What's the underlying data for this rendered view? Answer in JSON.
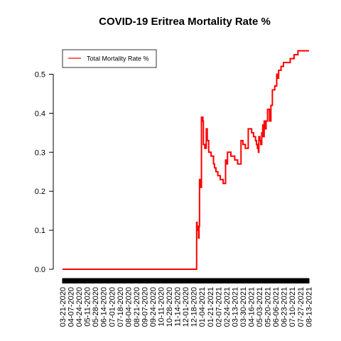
{
  "chart_data": {
    "type": "line",
    "title": "COVID-19 Eritrea Mortality Rate %",
    "xlabel": "",
    "ylabel": "",
    "ylim": [
      0,
      0.56
    ],
    "yticks": [
      "0.0",
      "0.1",
      "0.2",
      "0.3",
      "0.4",
      "0.5"
    ],
    "ytick_values": [
      0,
      0.1,
      0.2,
      0.3,
      0.4,
      0.5
    ],
    "x_start_date": "2020-03-21",
    "x_end_date": "2021-08-14",
    "xticks": [
      "03-21-2020",
      "04-07-2020",
      "04-24-2020",
      "05-11-2020",
      "05-28-2020",
      "06-14-2020",
      "07-01-2020",
      "07-18-2020",
      "08-04-2020",
      "08-21-2020",
      "09-07-2020",
      "09-24-2020",
      "10-11-2020",
      "10-28-2020",
      "11-14-2020",
      "12-01-2020",
      "12-18-2020",
      "01-04-2021",
      "01-21-2021",
      "02-07-2021",
      "02-24-2021",
      "03-13-2021",
      "03-30-2021",
      "04-16-2021",
      "05-03-2021",
      "05-20-2021",
      "06-06-2021",
      "06-23-2021",
      "07-10-2021",
      "07-27-2021",
      "08-13-2021"
    ],
    "legend": {
      "position": "top-left"
    },
    "grid": false,
    "series": [
      {
        "name": "Total Mortality Rate %",
        "color": "#ff0000",
        "points": [
          [
            "2020-03-21",
            0.0
          ],
          [
            "2020-12-23",
            0.0
          ],
          [
            "2020-12-24",
            0.12
          ],
          [
            "2020-12-25",
            0.11
          ],
          [
            "2020-12-26",
            0.1
          ],
          [
            "2020-12-27",
            0.1
          ],
          [
            "2020-12-28",
            0.08
          ],
          [
            "2020-12-29",
            0.11
          ],
          [
            "2020-12-30",
            0.23
          ],
          [
            "2021-01-01",
            0.22
          ],
          [
            "2021-01-02",
            0.21
          ],
          [
            "2021-01-03",
            0.39
          ],
          [
            "2021-01-05",
            0.39
          ],
          [
            "2021-01-06",
            0.38
          ],
          [
            "2021-01-07",
            0.32
          ],
          [
            "2021-01-09",
            0.32
          ],
          [
            "2021-01-10",
            0.31
          ],
          [
            "2021-01-12",
            0.31
          ],
          [
            "2021-01-13",
            0.36
          ],
          [
            "2021-01-15",
            0.33
          ],
          [
            "2021-01-17",
            0.33
          ],
          [
            "2021-01-18",
            0.3
          ],
          [
            "2021-01-22",
            0.3
          ],
          [
            "2021-01-23",
            0.29
          ],
          [
            "2021-01-26",
            0.29
          ],
          [
            "2021-01-28",
            0.27
          ],
          [
            "2021-01-30",
            0.26
          ],
          [
            "2021-02-02",
            0.25
          ],
          [
            "2021-02-05",
            0.25
          ],
          [
            "2021-02-06",
            0.24
          ],
          [
            "2021-02-10",
            0.24
          ],
          [
            "2021-02-11",
            0.23
          ],
          [
            "2021-02-16",
            0.23
          ],
          [
            "2021-02-17",
            0.22
          ],
          [
            "2021-02-21",
            0.22
          ],
          [
            "2021-02-22",
            0.28
          ],
          [
            "2021-02-24",
            0.28
          ],
          [
            "2021-02-25",
            0.27
          ],
          [
            "2021-02-26",
            0.3
          ],
          [
            "2021-03-04",
            0.3
          ],
          [
            "2021-03-05",
            0.29
          ],
          [
            "2021-03-12",
            0.29
          ],
          [
            "2021-03-13",
            0.28
          ],
          [
            "2021-03-18",
            0.28
          ],
          [
            "2021-03-19",
            0.27
          ],
          [
            "2021-03-25",
            0.27
          ],
          [
            "2021-03-26",
            0.33
          ],
          [
            "2021-03-29",
            0.33
          ],
          [
            "2021-03-30",
            0.32
          ],
          [
            "2021-04-03",
            0.32
          ],
          [
            "2021-04-04",
            0.31
          ],
          [
            "2021-04-09",
            0.31
          ],
          [
            "2021-04-10",
            0.36
          ],
          [
            "2021-04-16",
            0.36
          ],
          [
            "2021-04-17",
            0.35
          ],
          [
            "2021-04-20",
            0.35
          ],
          [
            "2021-04-21",
            0.34
          ],
          [
            "2021-04-24",
            0.34
          ],
          [
            "2021-04-25",
            0.33
          ],
          [
            "2021-04-27",
            0.32
          ],
          [
            "2021-04-29",
            0.31
          ],
          [
            "2021-05-01",
            0.3
          ],
          [
            "2021-05-02",
            0.34
          ],
          [
            "2021-05-04",
            0.33
          ],
          [
            "2021-05-06",
            0.32
          ],
          [
            "2021-05-08",
            0.35
          ],
          [
            "2021-05-10",
            0.37
          ],
          [
            "2021-05-11",
            0.34
          ],
          [
            "2021-05-13",
            0.38
          ],
          [
            "2021-05-15",
            0.36
          ],
          [
            "2021-05-17",
            0.38
          ],
          [
            "2021-05-19",
            0.38
          ],
          [
            "2021-05-20",
            0.41
          ],
          [
            "2021-05-23",
            0.41
          ],
          [
            "2021-05-24",
            0.38
          ],
          [
            "2021-05-27",
            0.42
          ],
          [
            "2021-05-30",
            0.46
          ],
          [
            "2021-06-02",
            0.46
          ],
          [
            "2021-06-04",
            0.47
          ],
          [
            "2021-06-07",
            0.47
          ],
          [
            "2021-06-08",
            0.5
          ],
          [
            "2021-06-10",
            0.49
          ],
          [
            "2021-06-12",
            0.51
          ],
          [
            "2021-06-16",
            0.51
          ],
          [
            "2021-06-17",
            0.52
          ],
          [
            "2021-06-21",
            0.52
          ],
          [
            "2021-06-22",
            0.53
          ],
          [
            "2021-07-05",
            0.53
          ],
          [
            "2021-07-06",
            0.54
          ],
          [
            "2021-07-12",
            0.54
          ],
          [
            "2021-07-14",
            0.55
          ],
          [
            "2021-07-20",
            0.55
          ],
          [
            "2021-07-22",
            0.56
          ],
          [
            "2021-08-14",
            0.56
          ]
        ]
      }
    ]
  }
}
